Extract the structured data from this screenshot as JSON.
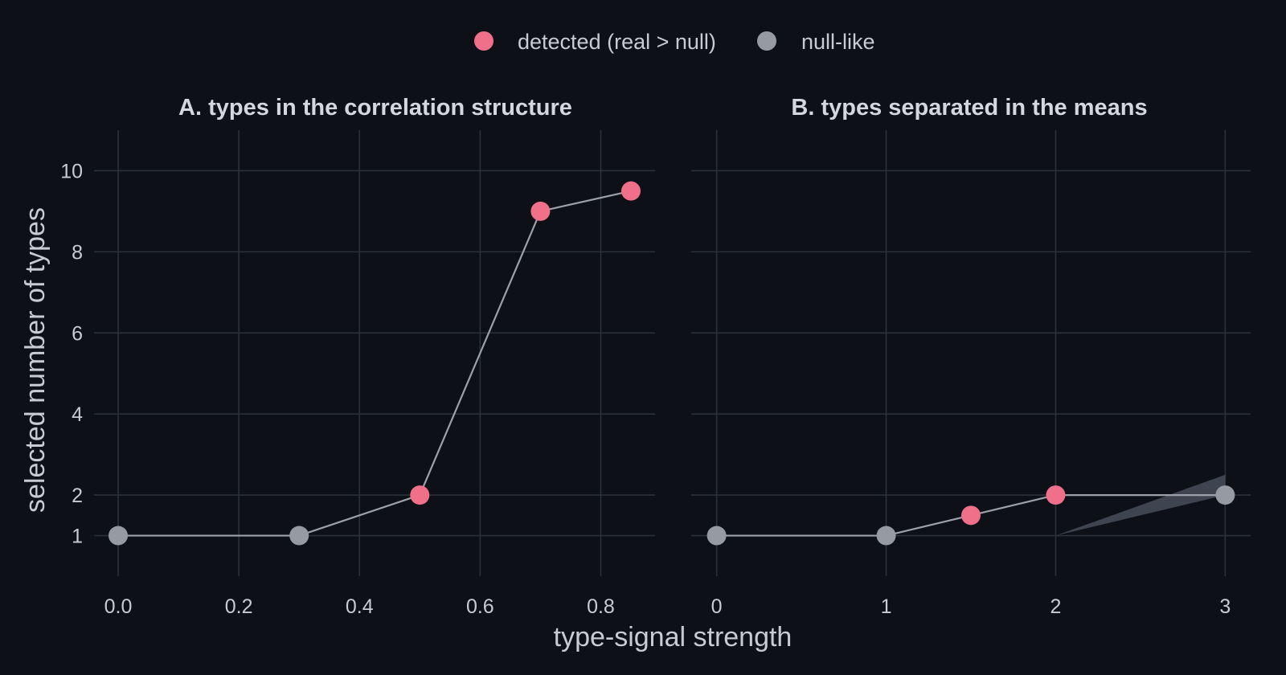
{
  "colors": {
    "background": "#0d1017",
    "grid": "#2c3038",
    "text": "#c8cbd1",
    "title_text": "#d4d7dc",
    "line": "#9ca0a8",
    "detected": "#f0708a",
    "null_like": "#959aa3",
    "ribbon": "#454b56"
  },
  "legend": {
    "position": "top",
    "items": [
      {
        "label": "detected (real > null)",
        "color": "#f0708a"
      },
      {
        "label": "null-like",
        "color": "#959aa3"
      }
    ]
  },
  "chart_data": {
    "type": "line",
    "xlabel": "type-signal strength",
    "ylabel": "selected number of types",
    "ylim": [
      0,
      11
    ],
    "yticks": [
      1,
      2,
      4,
      6,
      8,
      10
    ],
    "grid": true,
    "panels": [
      {
        "title": "A. types in the correlation structure",
        "xlim": [
          -0.04,
          0.89
        ],
        "xticks": [
          0.0,
          0.2,
          0.4,
          0.6,
          0.8
        ],
        "xtick_labels": [
          "0.0",
          "0.2",
          "0.4",
          "0.6",
          "0.8"
        ],
        "points": [
          {
            "x": 0.0,
            "y": 1,
            "status": "null-like"
          },
          {
            "x": 0.3,
            "y": 1,
            "status": "null-like"
          },
          {
            "x": 0.5,
            "y": 2,
            "status": "detected"
          },
          {
            "x": 0.7,
            "y": 9,
            "status": "detected"
          },
          {
            "x": 0.85,
            "y": 9.5,
            "status": "detected"
          }
        ]
      },
      {
        "title": "B. types separated in the means",
        "xlim": [
          -0.15,
          3.15
        ],
        "xticks": [
          0,
          1,
          2,
          3
        ],
        "xtick_labels": [
          "0",
          "1",
          "2",
          "3"
        ],
        "points": [
          {
            "x": 0,
            "y": 1,
            "status": "null-like"
          },
          {
            "x": 1,
            "y": 1,
            "status": "null-like"
          },
          {
            "x": 1.5,
            "y": 1.5,
            "status": "detected"
          },
          {
            "x": 2,
            "y": 2,
            "status": "detected"
          },
          {
            "x": 3,
            "y": 2,
            "status": "null-like"
          }
        ],
        "ribbon": [
          {
            "x": 2,
            "lower": 1,
            "upper": 1
          },
          {
            "x": 3,
            "lower": 2,
            "upper": 2.5
          }
        ]
      }
    ]
  }
}
